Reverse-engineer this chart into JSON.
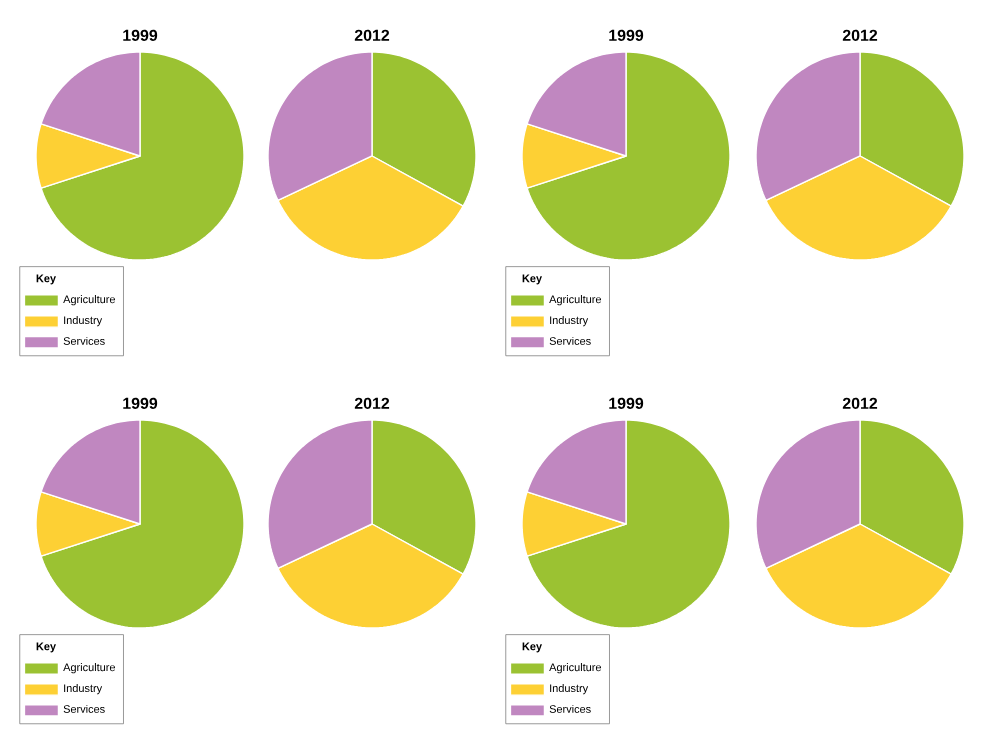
{
  "chart_data": [
    {
      "type": "pie",
      "title": "1999",
      "categories": [
        "Agriculture",
        "Industry",
        "Services"
      ],
      "values": [
        70,
        10,
        20
      ],
      "colors": [
        "#9bc232",
        "#fdd034",
        "#c087c0"
      ],
      "legend": "bottom left",
      "legend_title": "Key"
    },
    {
      "type": "pie",
      "title": "2012",
      "categories": [
        null,
        null,
        null
      ],
      "values": [
        33,
        35,
        32
      ],
      "colors": [
        "#9bc232",
        "#fdd034",
        "#c087c0"
      ]
    },
    {
      "type": "pie",
      "title": "1999",
      "categories": [
        "Agriculture",
        "Industry",
        "Services"
      ],
      "values": [
        70,
        10,
        20
      ],
      "colors": [
        "#9bc232",
        "#fdd034",
        "#c087c0"
      ],
      "legend": "bottom left",
      "legend_title": "Key"
    },
    {
      "type": "pie",
      "title": "2012",
      "categories": [
        null,
        null,
        null
      ],
      "values": [
        33,
        35,
        32
      ],
      "colors": [
        "#9bc232",
        "#fdd034",
        "#c087c0"
      ]
    },
    {
      "type": "pie",
      "title": "1999",
      "categories": [
        "Agriculture",
        "Industry",
        "Services"
      ],
      "values": [
        70,
        10,
        20
      ],
      "colors": [
        "#9bc232",
        "#fdd034",
        "#c087c0"
      ],
      "legend": "bottom left",
      "legend_title": "Key"
    },
    {
      "type": "pie",
      "title": "2012",
      "categories": [
        null,
        null,
        null
      ],
      "values": [
        33,
        35,
        32
      ],
      "colors": [
        "#9bc232",
        "#fdd034",
        "#c087c0"
      ]
    },
    {
      "type": "pie",
      "title": "1999",
      "categories": [
        "Agriculture",
        "Industry",
        "Services"
      ],
      "values": [
        70,
        10,
        20
      ],
      "colors": [
        "#9bc232",
        "#fdd034",
        "#c087c0"
      ],
      "legend": "bottom left",
      "legend_title": "Key"
    },
    {
      "type": "pie",
      "title": "2012",
      "categories": [
        null,
        null,
        null
      ],
      "values": [
        33,
        35,
        32
      ],
      "colors": [
        "#9bc232",
        "#fdd034",
        "#c087c0"
      ]
    }
  ]
}
